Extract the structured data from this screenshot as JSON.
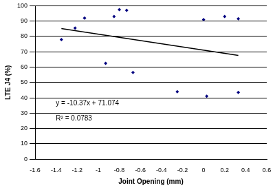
{
  "chart_data": {
    "type": "scatter",
    "x_label": "Joint Opening (mm)",
    "y_label": "LTE J4 (%)",
    "xlim": [
      -1.6,
      0.6
    ],
    "xticks": [
      -1.6,
      -1.4,
      -1.2,
      -1,
      -0.8,
      -0.6,
      -0.4,
      -0.2,
      0,
      0.2,
      0.4,
      0.6
    ],
    "ylim": [
      0,
      100
    ],
    "yticks": [
      0,
      10,
      20,
      30,
      40,
      50,
      60,
      70,
      80,
      90,
      100
    ],
    "grid": true,
    "series": [
      {
        "type": "scatter",
        "color": "#000080",
        "marker": "diamond",
        "x": [
          -1.35,
          -1.22,
          -1.13,
          -0.93,
          -0.85,
          -0.8,
          -0.73,
          -0.67,
          -0.25,
          0.0,
          0.03,
          0.2,
          0.33,
          0.33
        ],
        "values": [
          78,
          85.5,
          92,
          62.5,
          93,
          97.5,
          97,
          56.5,
          44,
          91,
          41,
          93,
          91.5,
          43.5
        ]
      },
      {
        "type": "line",
        "color": "#000000",
        "line_style": "solid",
        "x": [
          -1.35,
          0.33
        ],
        "values": [
          85.1,
          67.6
        ]
      }
    ],
    "annotations": [
      "y = -10.37x + 71.074",
      "R² = 0.0783"
    ]
  }
}
